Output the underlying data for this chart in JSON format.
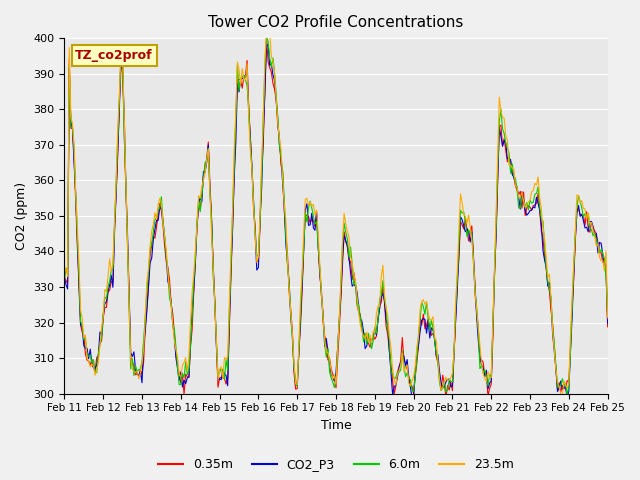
{
  "title": "Tower CO2 Profile Concentrations",
  "xlabel": "Time",
  "ylabel": "CO2 (ppm)",
  "ylim": [
    300,
    400
  ],
  "xlim": [
    0,
    336
  ],
  "background_color": "#e8e8e8",
  "plot_bg_color": "#e8e8e8",
  "legend_label": "TZ_co2prof",
  "legend_box_color": "#ffffc0",
  "legend_box_border": "#c0a000",
  "series_colors": {
    "0.35m": "#ff0000",
    "CO2_P3": "#0000cc",
    "6.0m": "#00cc00",
    "23.5m": "#ffaa00"
  },
  "xtick_labels": [
    "Feb 11",
    "Feb 12",
    "Feb 13",
    "Feb 14",
    "Feb 15",
    "Feb 16",
    "Feb 17",
    "Feb 18",
    "Feb 19",
    "Feb 20",
    "Feb 21",
    "Feb 22",
    "Feb 23",
    "Feb 24",
    "Feb 25"
  ],
  "xtick_positions": [
    0,
    24,
    48,
    72,
    96,
    120,
    144,
    168,
    192,
    216,
    240,
    264,
    288,
    312,
    336
  ]
}
